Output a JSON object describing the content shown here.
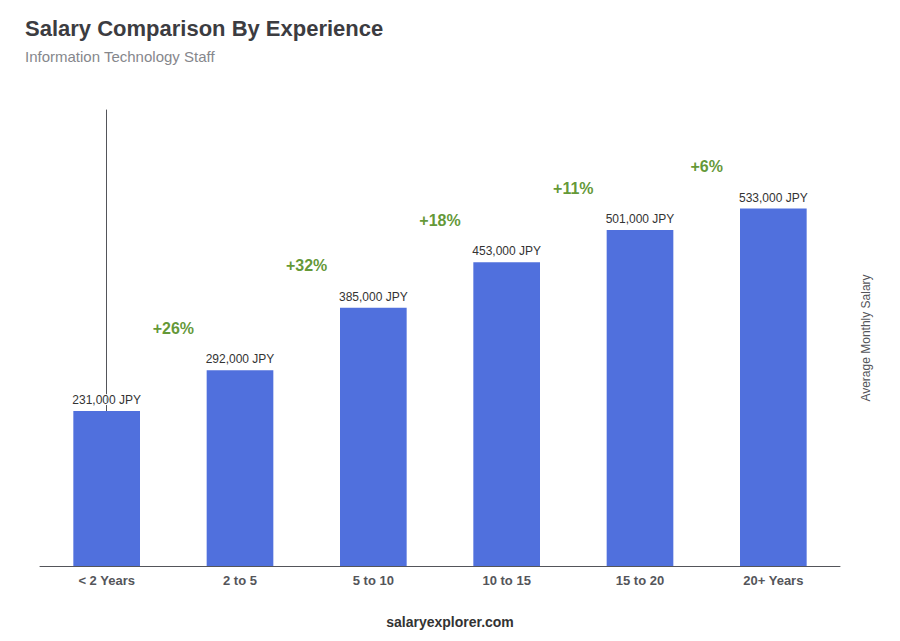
{
  "chart_data": {
    "type": "bar",
    "title": "Salary Comparison By Experience",
    "subtitle": "Information Technology Staff",
    "ylabel": "Average Monthly Salary",
    "categories": [
      "< 2 Years",
      "2 to 5",
      "5 to 10",
      "10 to 15",
      "15 to 20",
      "20+ Years"
    ],
    "values": [
      231000,
      292000,
      385000,
      453000,
      501000,
      533000
    ],
    "value_labels": [
      "231,000 JPY",
      "292,000 JPY",
      "385,000 JPY",
      "453,000 JPY",
      "501,000 JPY",
      "533,000 JPY"
    ],
    "data_labels": true,
    "annotations": [
      "+26%",
      "+32%",
      "+18%",
      "+11%",
      "+6%"
    ],
    "footer": "salaryexplorer.com",
    "ylim": [
      0,
      680000
    ],
    "tick_labels": "x",
    "grid": false
  }
}
